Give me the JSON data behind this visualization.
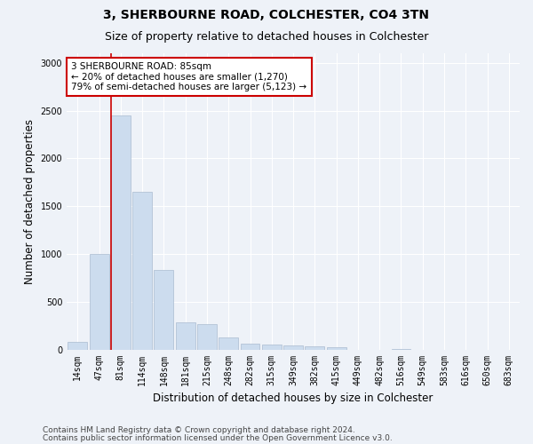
{
  "title": "3, SHERBOURNE ROAD, COLCHESTER, CO4 3TN",
  "subtitle": "Size of property relative to detached houses in Colchester",
  "xlabel": "Distribution of detached houses by size in Colchester",
  "ylabel": "Number of detached properties",
  "categories": [
    "14sqm",
    "47sqm",
    "81sqm",
    "114sqm",
    "148sqm",
    "181sqm",
    "215sqm",
    "248sqm",
    "282sqm",
    "315sqm",
    "349sqm",
    "382sqm",
    "415sqm",
    "449sqm",
    "482sqm",
    "516sqm",
    "549sqm",
    "583sqm",
    "616sqm",
    "650sqm",
    "683sqm"
  ],
  "values": [
    75,
    1000,
    2450,
    1650,
    830,
    280,
    270,
    130,
    60,
    50,
    40,
    30,
    20,
    0,
    0,
    5,
    0,
    0,
    0,
    0,
    0
  ],
  "bar_color": "#ccdcee",
  "bar_edge_color": "#aabbd0",
  "vline_color": "#cc0000",
  "annotation_text": "3 SHERBOURNE ROAD: 85sqm\n← 20% of detached houses are smaller (1,270)\n79% of semi-detached houses are larger (5,123) →",
  "annotation_box_color": "#ffffff",
  "annotation_box_edge": "#cc0000",
  "ylim": [
    0,
    3100
  ],
  "yticks": [
    0,
    500,
    1000,
    1500,
    2000,
    2500,
    3000
  ],
  "footer1": "Contains HM Land Registry data © Crown copyright and database right 2024.",
  "footer2": "Contains public sector information licensed under the Open Government Licence v3.0.",
  "bg_color": "#eef2f8",
  "plot_bg_color": "#eef2f8",
  "title_fontsize": 10,
  "subtitle_fontsize": 9,
  "axis_label_fontsize": 8.5,
  "tick_fontsize": 7,
  "footer_fontsize": 6.5,
  "annotation_fontsize": 7.5
}
